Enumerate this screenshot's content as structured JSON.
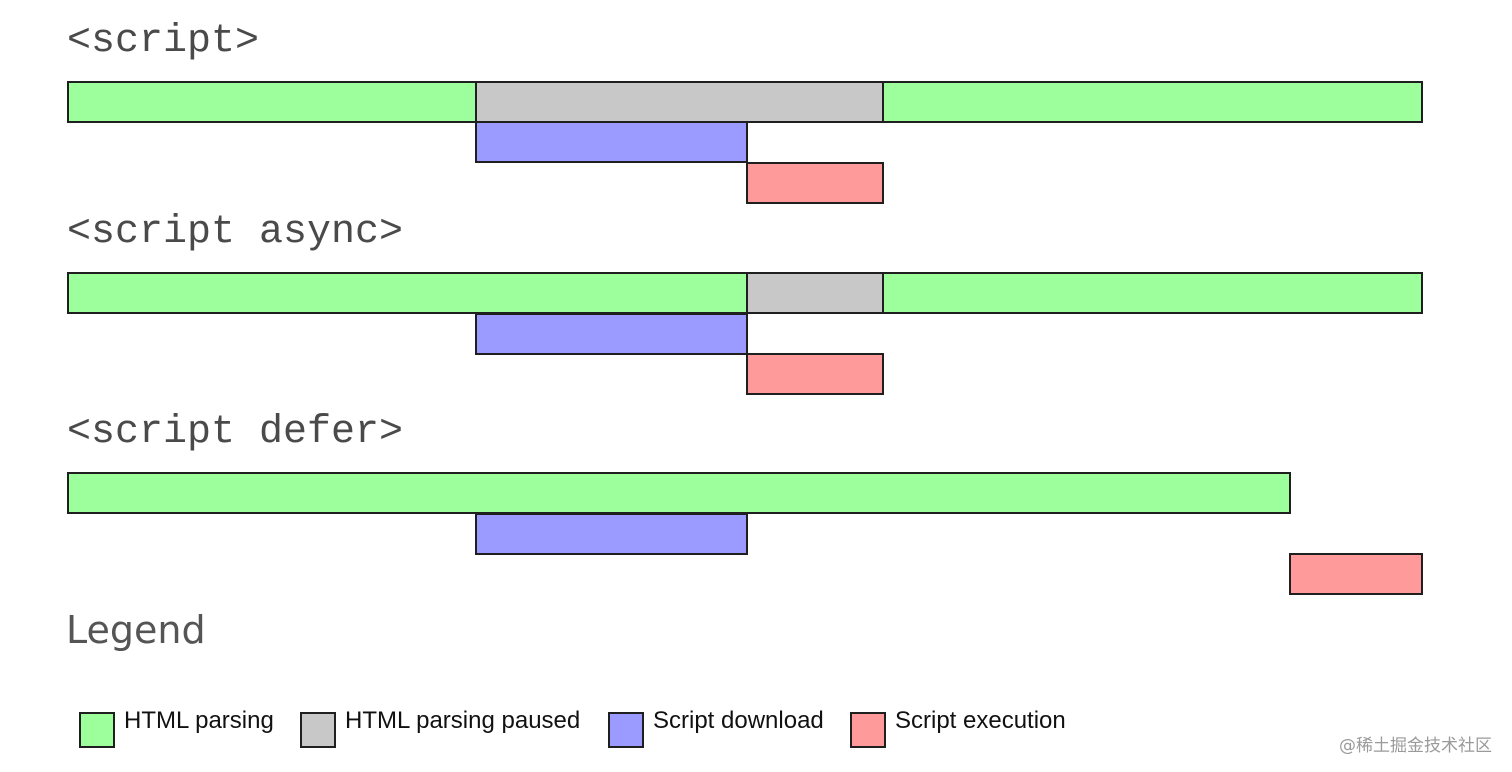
{
  "colors": {
    "html_parsing": "#9cff9c",
    "html_parsing_paused": "#c8c8c8",
    "script_download": "#9a9aff",
    "script_execution": "#ff9a9a"
  },
  "sections": [
    {
      "heading": "<script>"
    },
    {
      "heading": "<script async>"
    },
    {
      "heading": "<script defer>"
    }
  ],
  "legend": {
    "title": "Legend",
    "items": [
      {
        "key": "html_parsing",
        "label": "HTML parsing"
      },
      {
        "key": "html_parsing_paused",
        "label": "HTML parsing paused"
      },
      {
        "key": "script_download",
        "label": "Script download"
      },
      {
        "key": "script_execution",
        "label": "Script execution"
      }
    ]
  },
  "watermark": "@稀土掘金技术社区"
}
